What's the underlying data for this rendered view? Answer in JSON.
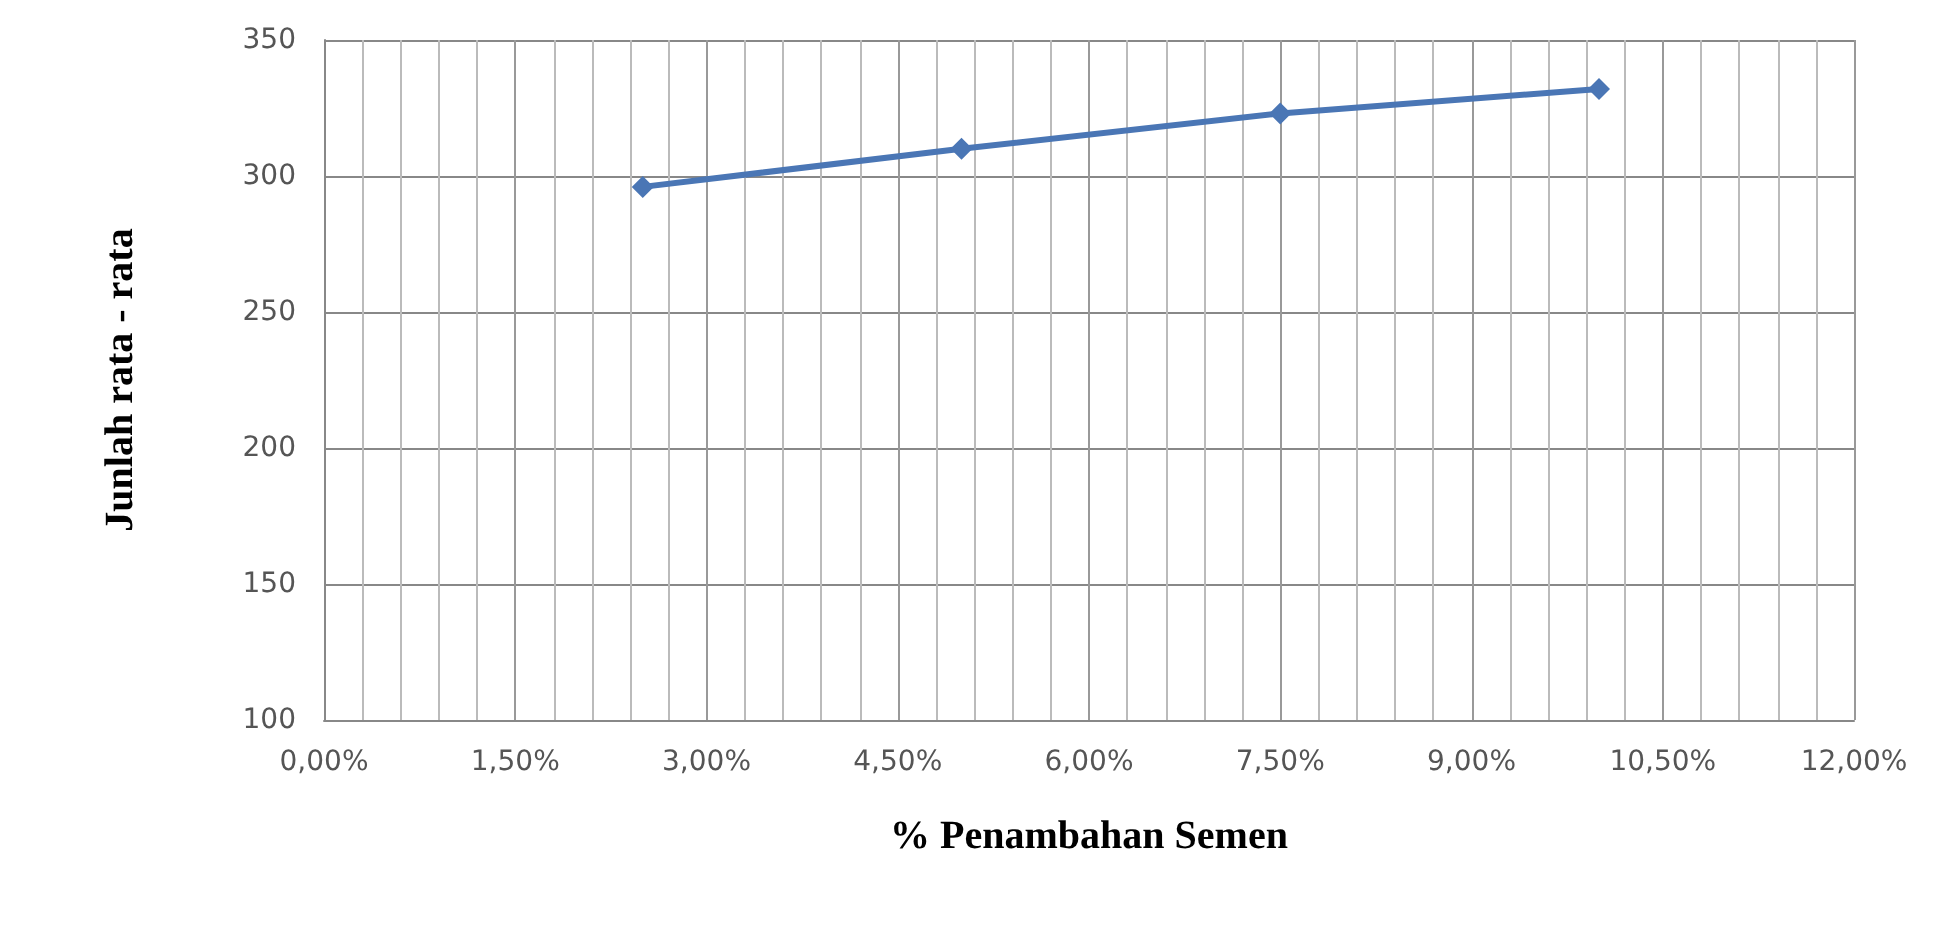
{
  "chart_data": {
    "type": "line",
    "xlabel": "% Penambahan Semen",
    "ylabel": "Junlah rata - rata",
    "x": [
      2.5,
      5,
      7.5,
      10
    ],
    "series": [
      {
        "color": "#4a76b5",
        "values": [
          296,
          310,
          323,
          332
        ]
      }
    ],
    "xlim": [
      0,
      12
    ],
    "xticks": [
      {
        "value": 0,
        "label": "0,00%"
      },
      {
        "value": 1.5,
        "label": "1,50%"
      },
      {
        "value": 3,
        "label": "3,00%"
      },
      {
        "value": 4.5,
        "label": "4,50%"
      },
      {
        "value": 6,
        "label": "6,00%"
      },
      {
        "value": 7.5,
        "label": "7,50%"
      },
      {
        "value": 9,
        "label": "9,00%"
      },
      {
        "value": 10.5,
        "label": "10,50%"
      },
      {
        "value": 12,
        "label": "12,00%"
      }
    ],
    "ylim": [
      100,
      350
    ],
    "yticks": [
      100,
      150,
      200,
      250,
      300,
      350
    ],
    "grid": true,
    "marker": "diamond",
    "line_style": "solid"
  }
}
